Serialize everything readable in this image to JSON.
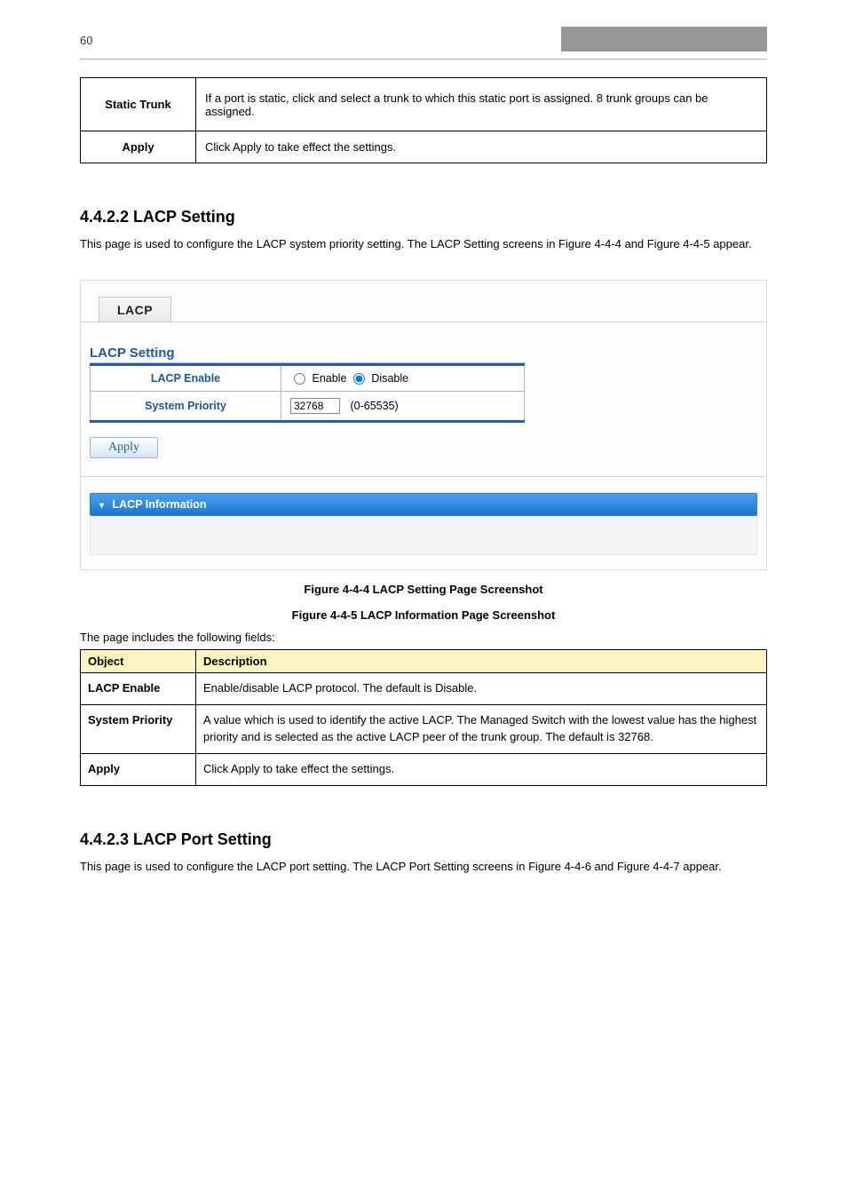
{
  "header": {
    "page_number": "60"
  },
  "top_table": {
    "rows": [
      {
        "label": "Static Trunk",
        "desc": "If a port is static, click and select a trunk to which this static port is assigned. 8 trunk groups can be assigned."
      },
      {
        "label": "Apply",
        "desc": "Click Apply to take effect the settings."
      }
    ]
  },
  "section1": {
    "heading": "4.4.2.2 LACP Setting",
    "para": "This page is used to configure the LACP system priority setting. The LACP Setting screens in Figure 4-4-4 and Figure 4-4-5 appear."
  },
  "figure": {
    "tab_label": "LACP",
    "subheading": "LACP Setting",
    "rows": {
      "enable_label": "LACP Enable",
      "enable_opt1": "Enable",
      "enable_opt2": "Disable",
      "priority_label": "System Priority",
      "priority_value": "32768",
      "priority_range": "(0-65535)"
    },
    "apply_label": "Apply",
    "info_bar": "LACP Information",
    "caption1": "Figure 4-4-4 LACP Setting Page Screenshot",
    "caption2": "Figure 4-4-5 LACP Information Page Screenshot"
  },
  "desc": {
    "intro": "The page includes the following fields:",
    "headers": {
      "object": "Object",
      "description": "Description"
    },
    "rows": [
      {
        "obj": "LACP Enable",
        "text": "Enable/disable LACP protocol. The default is Disable."
      },
      {
        "obj": "System Priority",
        "text": "A value which is used to identify the active LACP. The Managed Switch with the lowest value has the highest priority and is selected as the active LACP peer of the trunk group. The default is 32768."
      },
      {
        "obj": "Apply",
        "text": "Click Apply to take effect the settings."
      }
    ]
  },
  "section2": {
    "heading": "4.4.2.3 LACP Port Setting",
    "para": "This page is used to configure the LACP port setting. The LACP Port Setting screens in Figure 4-4-6 and Figure 4-4-7 appear."
  },
  "colors": {
    "grey": "#969696",
    "link_blue": "#1e56a8",
    "bar_blue1": "#4aa1ec",
    "bar_blue2": "#1b76d2",
    "th_bg": "#fbf6c1"
  }
}
